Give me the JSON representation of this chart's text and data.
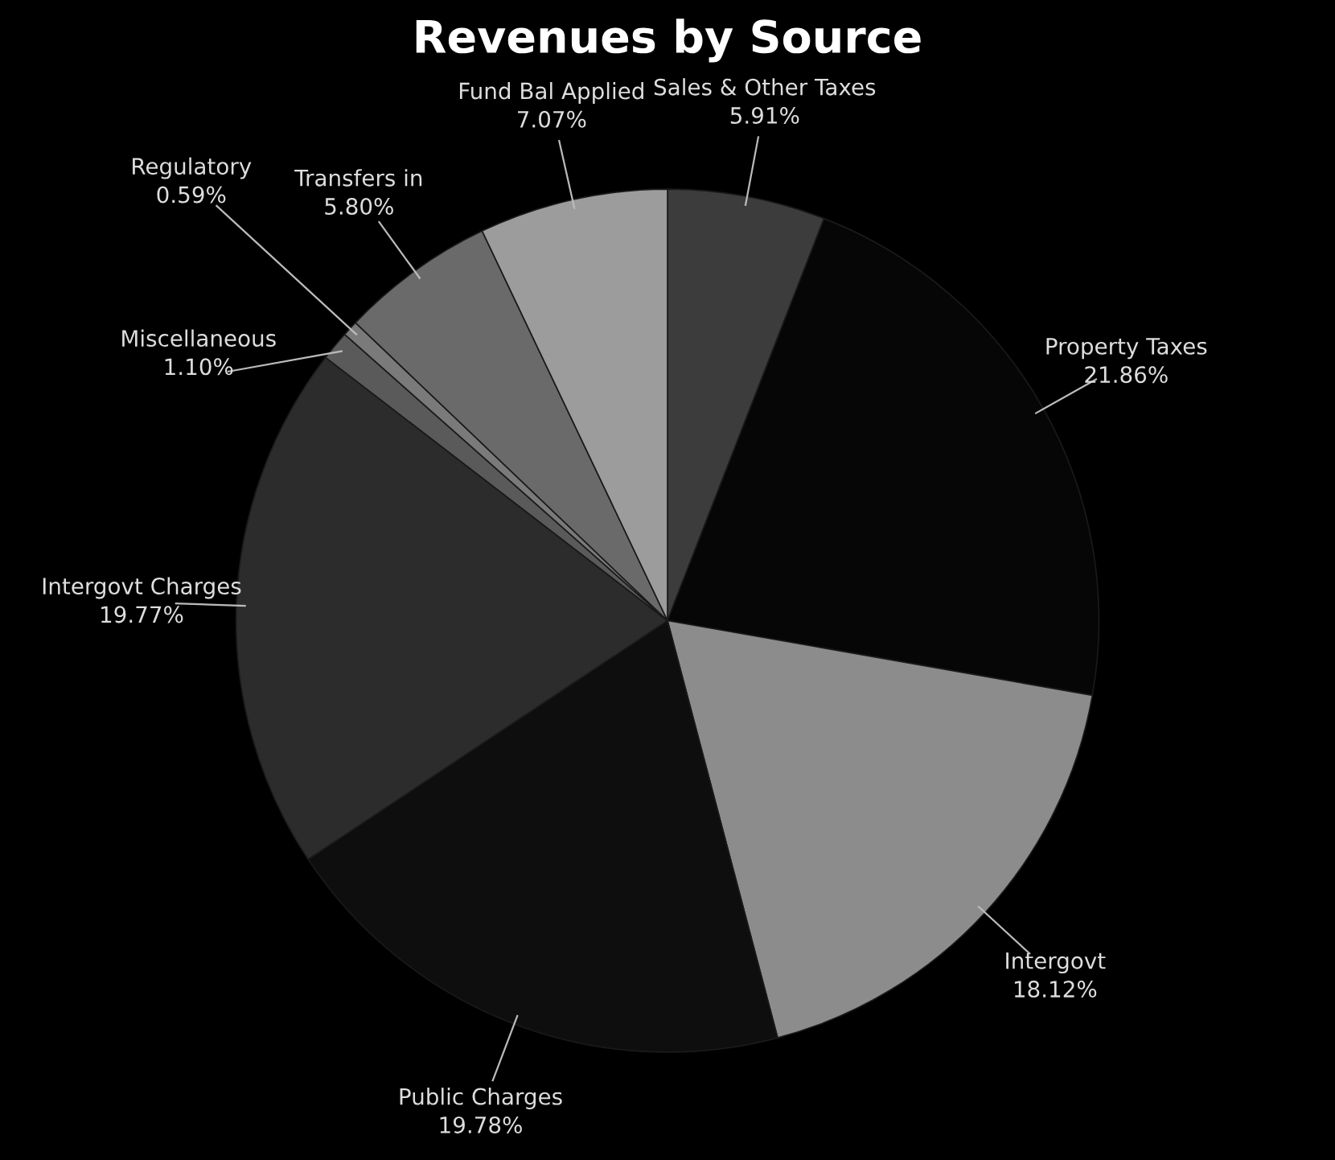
{
  "chart_data": {
    "type": "pie",
    "title": "Revenues by Source",
    "categories": [
      "Sales & Other Taxes",
      "Property Taxes",
      "Intergovt",
      "Public Charges",
      "Intergovt Charges",
      "Miscellaneous",
      "Regulatory",
      "Transfers in",
      "Fund Bal Applied"
    ],
    "values": [
      5.91,
      21.86,
      18.12,
      19.78,
      19.77,
      1.1,
      0.59,
      5.8,
      7.07
    ],
    "value_labels": [
      "5.91%",
      "21.86%",
      "18.12%",
      "19.78%",
      "19.77%",
      "1.10%",
      "0.59%",
      "5.80%",
      "7.07%"
    ],
    "colors": [
      "#3c3c3c",
      "#060606",
      "#8c8c8c",
      "#0e0e0e",
      "#2c2c2c",
      "#5a5a5a",
      "#7a7a7a",
      "#6a6a6a",
      "#9c9c9c"
    ],
    "legend": false
  }
}
